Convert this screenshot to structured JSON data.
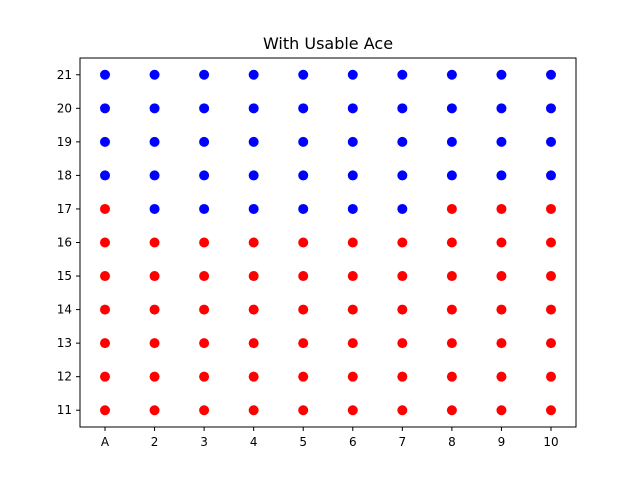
{
  "chart_data": {
    "type": "scatter",
    "title": "With Usable Ace",
    "xlabel": "",
    "ylabel": "",
    "x_categories": [
      "A",
      "2",
      "3",
      "4",
      "5",
      "6",
      "7",
      "8",
      "9",
      "10"
    ],
    "y_ticks": [
      11,
      12,
      13,
      14,
      15,
      16,
      17,
      18,
      19,
      20,
      21
    ],
    "ylim": [
      10.5,
      21.5
    ],
    "grid": false,
    "legend": "none",
    "colors": {
      "hit": "#ff0000",
      "stick": "#0000ff"
    },
    "series": [
      {
        "color": "#0000ff",
        "points": [
          {
            "x": "A",
            "y": 18
          },
          {
            "x": "A",
            "y": 19
          },
          {
            "x": "A",
            "y": 20
          },
          {
            "x": "A",
            "y": 21
          },
          {
            "x": "2",
            "y": 17
          },
          {
            "x": "2",
            "y": 18
          },
          {
            "x": "2",
            "y": 19
          },
          {
            "x": "2",
            "y": 20
          },
          {
            "x": "2",
            "y": 21
          },
          {
            "x": "3",
            "y": 17
          },
          {
            "x": "3",
            "y": 18
          },
          {
            "x": "3",
            "y": 19
          },
          {
            "x": "3",
            "y": 20
          },
          {
            "x": "3",
            "y": 21
          },
          {
            "x": "4",
            "y": 17
          },
          {
            "x": "4",
            "y": 18
          },
          {
            "x": "4",
            "y": 19
          },
          {
            "x": "4",
            "y": 20
          },
          {
            "x": "4",
            "y": 21
          },
          {
            "x": "5",
            "y": 17
          },
          {
            "x": "5",
            "y": 18
          },
          {
            "x": "5",
            "y": 19
          },
          {
            "x": "5",
            "y": 20
          },
          {
            "x": "5",
            "y": 21
          },
          {
            "x": "6",
            "y": 17
          },
          {
            "x": "6",
            "y": 18
          },
          {
            "x": "6",
            "y": 19
          },
          {
            "x": "6",
            "y": 20
          },
          {
            "x": "6",
            "y": 21
          },
          {
            "x": "7",
            "y": 17
          },
          {
            "x": "7",
            "y": 18
          },
          {
            "x": "7",
            "y": 19
          },
          {
            "x": "7",
            "y": 20
          },
          {
            "x": "7",
            "y": 21
          },
          {
            "x": "8",
            "y": 18
          },
          {
            "x": "8",
            "y": 19
          },
          {
            "x": "8",
            "y": 20
          },
          {
            "x": "8",
            "y": 21
          },
          {
            "x": "9",
            "y": 18
          },
          {
            "x": "9",
            "y": 19
          },
          {
            "x": "9",
            "y": 20
          },
          {
            "x": "9",
            "y": 21
          },
          {
            "x": "10",
            "y": 18
          },
          {
            "x": "10",
            "y": 19
          },
          {
            "x": "10",
            "y": 20
          },
          {
            "x": "10",
            "y": 21
          }
        ]
      },
      {
        "color": "#ff0000",
        "points": [
          {
            "x": "A",
            "y": 11
          },
          {
            "x": "A",
            "y": 12
          },
          {
            "x": "A",
            "y": 13
          },
          {
            "x": "A",
            "y": 14
          },
          {
            "x": "A",
            "y": 15
          },
          {
            "x": "A",
            "y": 16
          },
          {
            "x": "A",
            "y": 17
          },
          {
            "x": "2",
            "y": 11
          },
          {
            "x": "2",
            "y": 12
          },
          {
            "x": "2",
            "y": 13
          },
          {
            "x": "2",
            "y": 14
          },
          {
            "x": "2",
            "y": 15
          },
          {
            "x": "2",
            "y": 16
          },
          {
            "x": "3",
            "y": 11
          },
          {
            "x": "3",
            "y": 12
          },
          {
            "x": "3",
            "y": 13
          },
          {
            "x": "3",
            "y": 14
          },
          {
            "x": "3",
            "y": 15
          },
          {
            "x": "3",
            "y": 16
          },
          {
            "x": "4",
            "y": 11
          },
          {
            "x": "4",
            "y": 12
          },
          {
            "x": "4",
            "y": 13
          },
          {
            "x": "4",
            "y": 14
          },
          {
            "x": "4",
            "y": 15
          },
          {
            "x": "4",
            "y": 16
          },
          {
            "x": "5",
            "y": 11
          },
          {
            "x": "5",
            "y": 12
          },
          {
            "x": "5",
            "y": 13
          },
          {
            "x": "5",
            "y": 14
          },
          {
            "x": "5",
            "y": 15
          },
          {
            "x": "5",
            "y": 16
          },
          {
            "x": "6",
            "y": 11
          },
          {
            "x": "6",
            "y": 12
          },
          {
            "x": "6",
            "y": 13
          },
          {
            "x": "6",
            "y": 14
          },
          {
            "x": "6",
            "y": 15
          },
          {
            "x": "6",
            "y": 16
          },
          {
            "x": "7",
            "y": 11
          },
          {
            "x": "7",
            "y": 12
          },
          {
            "x": "7",
            "y": 13
          },
          {
            "x": "7",
            "y": 14
          },
          {
            "x": "7",
            "y": 15
          },
          {
            "x": "7",
            "y": 16
          },
          {
            "x": "8",
            "y": 11
          },
          {
            "x": "8",
            "y": 12
          },
          {
            "x": "8",
            "y": 13
          },
          {
            "x": "8",
            "y": 14
          },
          {
            "x": "8",
            "y": 15
          },
          {
            "x": "8",
            "y": 16
          },
          {
            "x": "8",
            "y": 17
          },
          {
            "x": "9",
            "y": 11
          },
          {
            "x": "9",
            "y": 12
          },
          {
            "x": "9",
            "y": 13
          },
          {
            "x": "9",
            "y": 14
          },
          {
            "x": "9",
            "y": 15
          },
          {
            "x": "9",
            "y": 16
          },
          {
            "x": "9",
            "y": 17
          },
          {
            "x": "10",
            "y": 11
          },
          {
            "x": "10",
            "y": 12
          },
          {
            "x": "10",
            "y": 13
          },
          {
            "x": "10",
            "y": 14
          },
          {
            "x": "10",
            "y": 15
          },
          {
            "x": "10",
            "y": 16
          },
          {
            "x": "10",
            "y": 17
          }
        ]
      }
    ]
  }
}
